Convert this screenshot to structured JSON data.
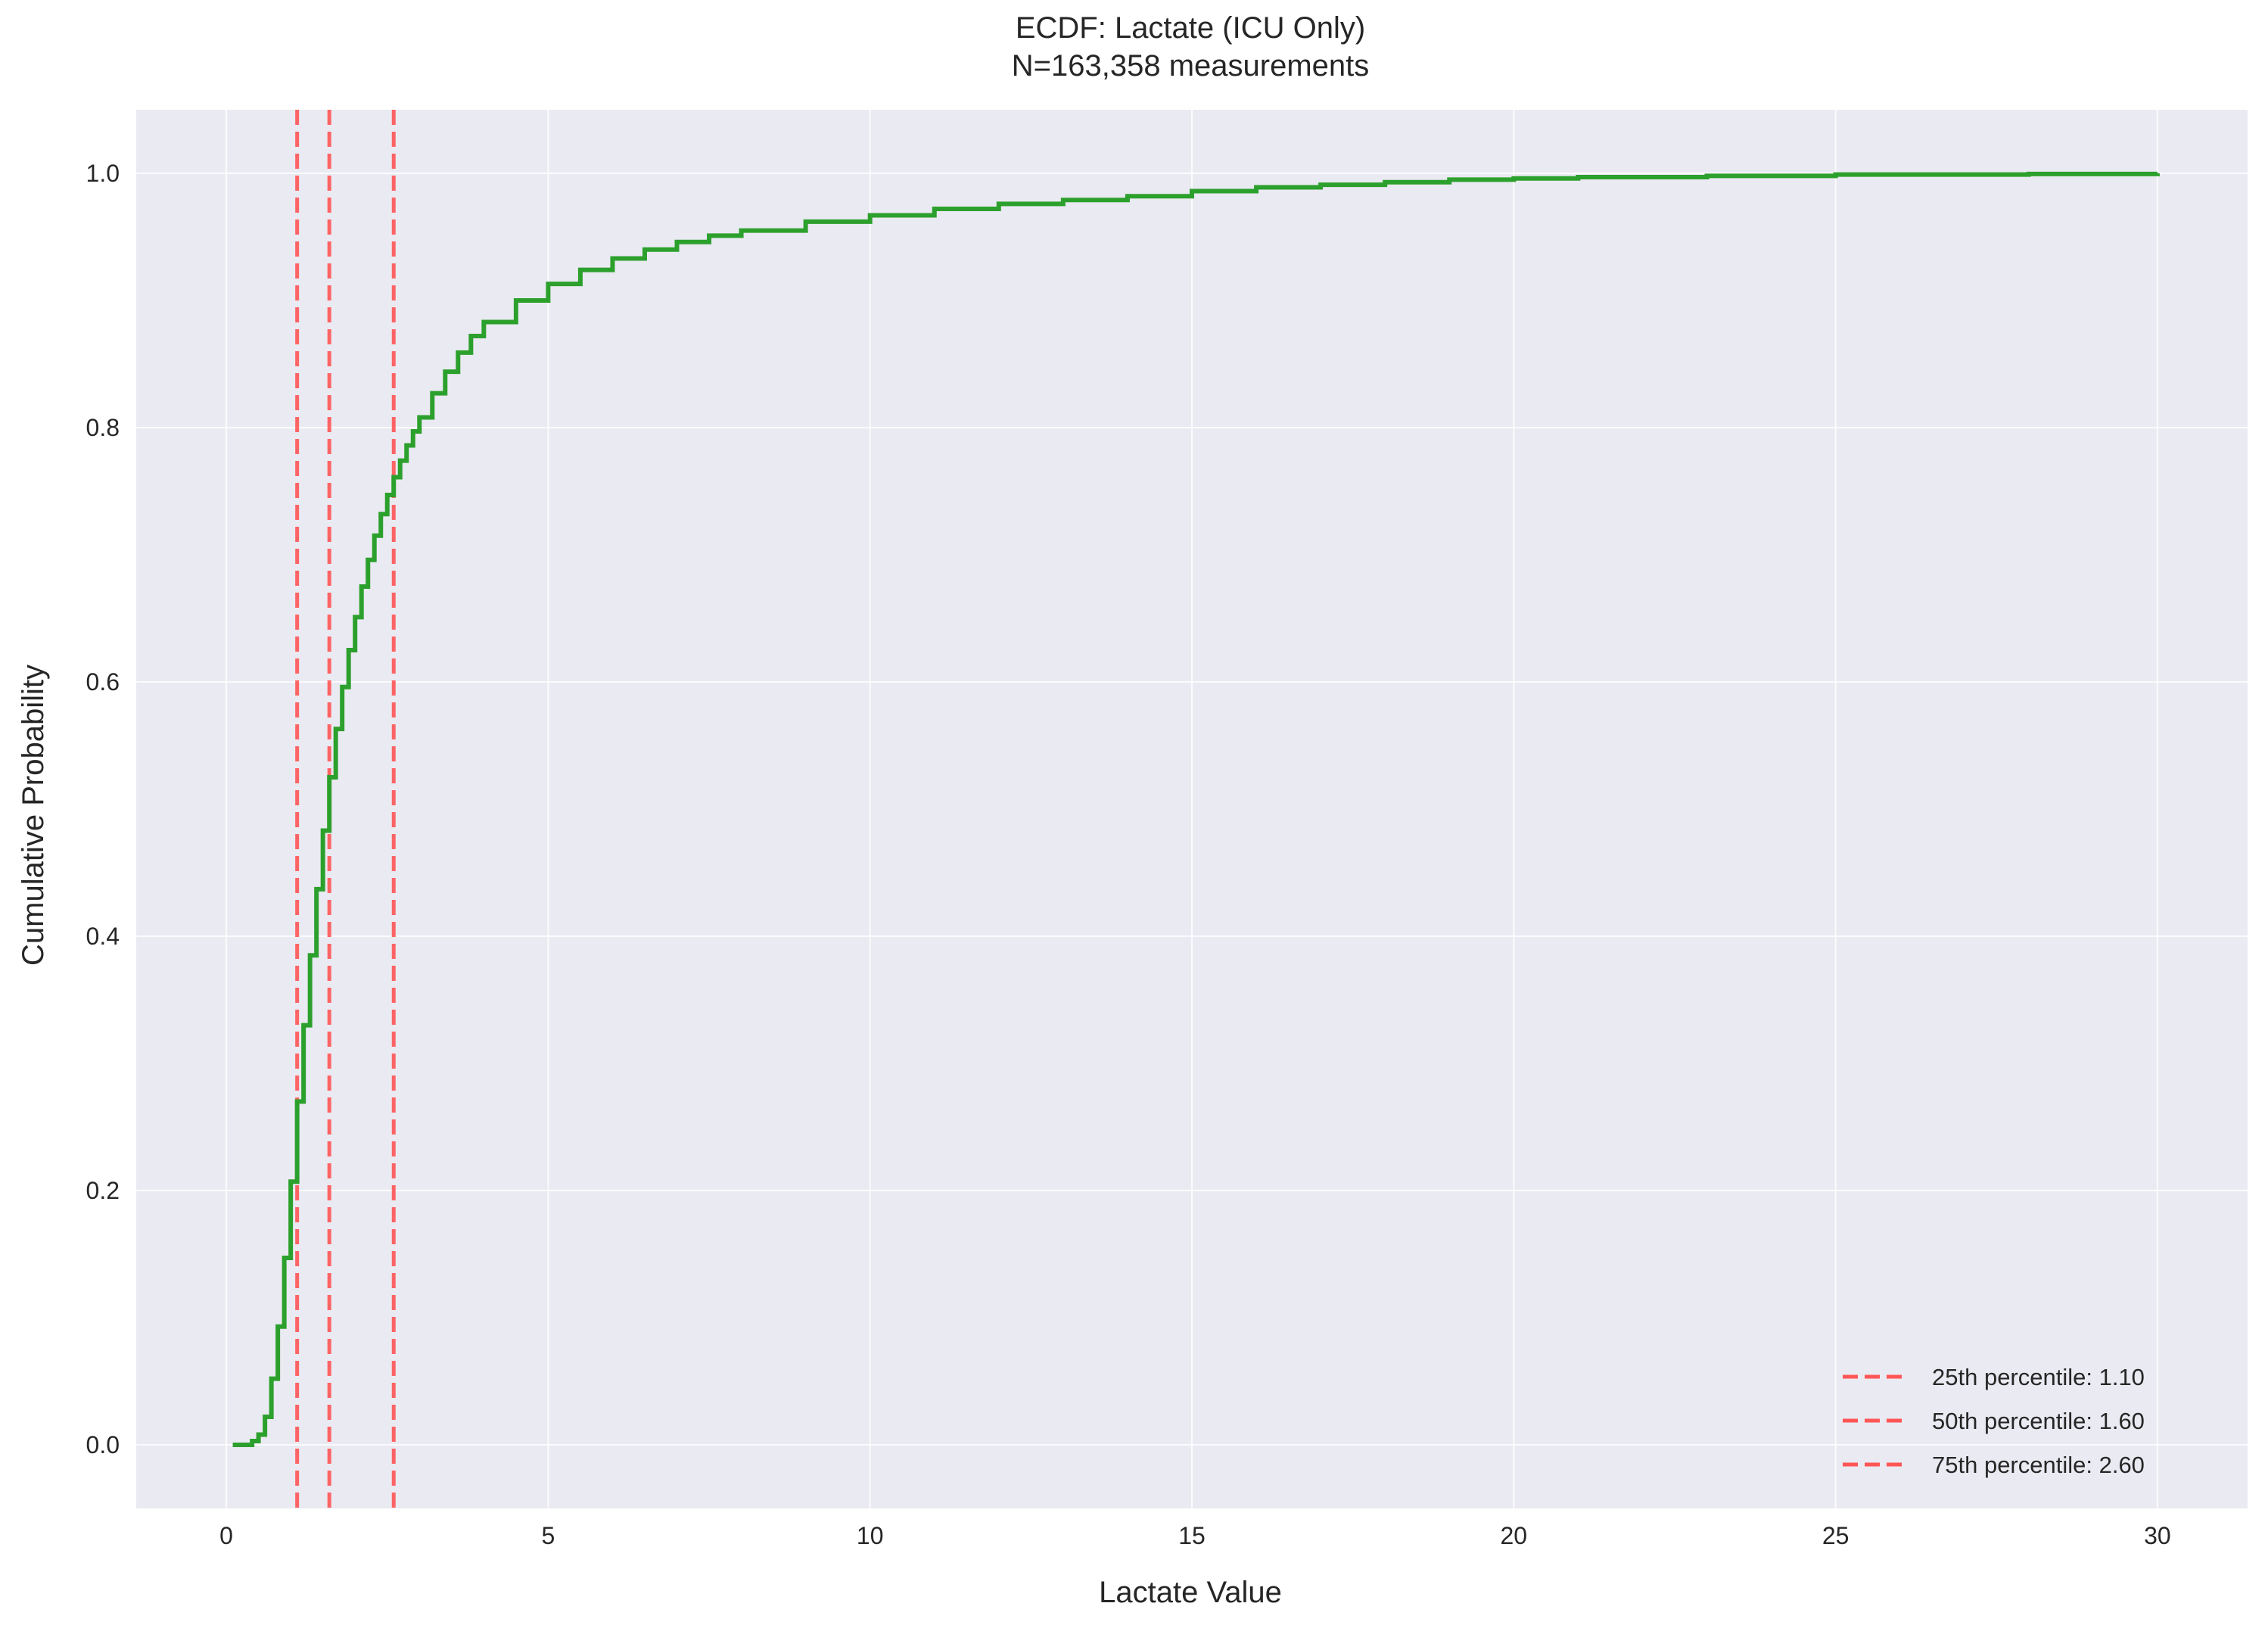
{
  "chart_data": {
    "type": "line",
    "title": "ECDF: Lactate (ICU Only)",
    "subtitle": "N=163,358 measurements",
    "xlabel": "Lactate Value",
    "ylabel": "Cumulative Probability",
    "xlim": [
      -1.4,
      31.4
    ],
    "ylim": [
      -0.05,
      1.05
    ],
    "xticks": [
      0,
      5,
      10,
      15,
      20,
      25,
      30
    ],
    "xtick_labels": [
      "0",
      "5",
      "10",
      "15",
      "20",
      "25",
      "30"
    ],
    "yticks": [
      0.0,
      0.2,
      0.4,
      0.6,
      0.8,
      1.0
    ],
    "ytick_labels": [
      "0.0",
      "0.2",
      "0.4",
      "0.6",
      "0.8",
      "1.0"
    ],
    "grid": true,
    "legend_position": "bottom-right",
    "colors": {
      "ecdf": "#2ca02c",
      "percentile": "#ff5555",
      "background": "#eaeaf2",
      "grid": "#ffffff"
    },
    "series": [
      {
        "style": "step",
        "points": [
          [
            0.1,
            0.0
          ],
          [
            0.4,
            0.003
          ],
          [
            0.5,
            0.008
          ],
          [
            0.6,
            0.022
          ],
          [
            0.7,
            0.052
          ],
          [
            0.8,
            0.093
          ],
          [
            0.9,
            0.147
          ],
          [
            1.0,
            0.207
          ],
          [
            1.1,
            0.27
          ],
          [
            1.2,
            0.33
          ],
          [
            1.3,
            0.385
          ],
          [
            1.4,
            0.437
          ],
          [
            1.5,
            0.483
          ],
          [
            1.6,
            0.525
          ],
          [
            1.7,
            0.563
          ],
          [
            1.8,
            0.596
          ],
          [
            1.9,
            0.625
          ],
          [
            2.0,
            0.651
          ],
          [
            2.1,
            0.675
          ],
          [
            2.2,
            0.696
          ],
          [
            2.3,
            0.715
          ],
          [
            2.4,
            0.732
          ],
          [
            2.5,
            0.747
          ],
          [
            2.6,
            0.761
          ],
          [
            2.7,
            0.774
          ],
          [
            2.8,
            0.786
          ],
          [
            2.9,
            0.797
          ],
          [
            3.0,
            0.808
          ],
          [
            3.2,
            0.827
          ],
          [
            3.4,
            0.844
          ],
          [
            3.6,
            0.859
          ],
          [
            3.8,
            0.872
          ],
          [
            4.0,
            0.883
          ],
          [
            4.5,
            0.9
          ],
          [
            5.0,
            0.913
          ],
          [
            5.5,
            0.924
          ],
          [
            6.0,
            0.933
          ],
          [
            6.5,
            0.94
          ],
          [
            7.0,
            0.946
          ],
          [
            7.5,
            0.951
          ],
          [
            8.0,
            0.955
          ],
          [
            9.0,
            0.962
          ],
          [
            10.0,
            0.967
          ],
          [
            11.0,
            0.972
          ],
          [
            12.0,
            0.976
          ],
          [
            13.0,
            0.979
          ],
          [
            14.0,
            0.982
          ],
          [
            15.0,
            0.986
          ],
          [
            16.0,
            0.989
          ],
          [
            17.0,
            0.991
          ],
          [
            18.0,
            0.993
          ],
          [
            19.0,
            0.995
          ],
          [
            20.0,
            0.996
          ],
          [
            21.0,
            0.997
          ],
          [
            22.0,
            0.997
          ],
          [
            23.0,
            0.998
          ],
          [
            24.0,
            0.998
          ],
          [
            25.0,
            0.999
          ],
          [
            27.0,
            0.999
          ],
          [
            28.0,
            0.9995
          ],
          [
            30.0,
            1.0
          ]
        ]
      }
    ],
    "percentiles": [
      {
        "x": 1.1,
        "label": "25th percentile: 1.10"
      },
      {
        "x": 1.6,
        "label": "50th percentile: 1.60"
      },
      {
        "x": 2.6,
        "label": "75th percentile: 2.60"
      }
    ]
  }
}
